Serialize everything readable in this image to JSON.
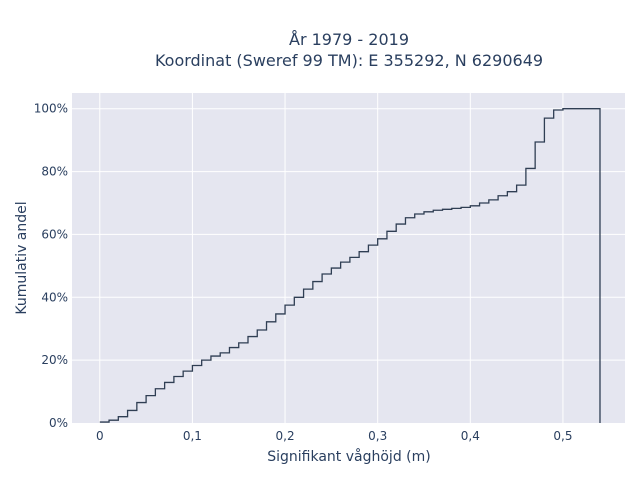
{
  "chart_data": {
    "type": "line",
    "subtype": "cumulative-step",
    "title_line1": "År 1979 - 2019",
    "title_line2": "Koordinat (Sweref 99 TM): E 355292, N 6290649",
    "xlabel": "Signifikant våghöjd (m)",
    "ylabel": "Kumulativ andel",
    "xlim": [
      -0.03,
      0.567
    ],
    "ylim": [
      0,
      105
    ],
    "x_ticks": [
      0,
      0.1,
      0.2,
      0.3,
      0.4,
      0.5
    ],
    "x_tick_labels": [
      "0",
      "0,1",
      "0,2",
      "0,3",
      "0,4",
      "0,5"
    ],
    "y_ticks": [
      0,
      20,
      40,
      60,
      80,
      100
    ],
    "y_tick_labels": [
      "0%",
      "20%",
      "40%",
      "60%",
      "80%",
      "100%"
    ],
    "grid": true,
    "colors": {
      "background": "#e5e6f0",
      "line": "#2f3e53",
      "grid": "#ffffff",
      "text": "#2a3f5f"
    },
    "step_width": 0.01,
    "x": [
      0,
      0.01,
      0.02,
      0.03,
      0.04,
      0.05,
      0.06,
      0.07,
      0.08,
      0.09,
      0.1,
      0.11,
      0.12,
      0.13,
      0.14,
      0.15,
      0.16,
      0.17,
      0.18,
      0.19,
      0.2,
      0.21,
      0.22,
      0.23,
      0.24,
      0.25,
      0.26,
      0.27,
      0.28,
      0.29,
      0.3,
      0.31,
      0.32,
      0.33,
      0.34,
      0.35,
      0.36,
      0.37,
      0.38,
      0.39,
      0.4,
      0.41,
      0.42,
      0.43,
      0.44,
      0.45,
      0.46,
      0.47,
      0.48,
      0.49,
      0.5,
      0.51,
      0.52,
      0.53
    ],
    "y": [
      0.3,
      0.9,
      2.0,
      4.0,
      6.5,
      8.7,
      10.9,
      12.9,
      14.8,
      16.5,
      18.3,
      20.0,
      21.3,
      22.3,
      24.0,
      25.5,
      27.5,
      29.6,
      32.2,
      34.7,
      37.5,
      40.0,
      42.6,
      45.0,
      47.4,
      49.3,
      51.2,
      52.7,
      54.5,
      56.6,
      58.6,
      61.0,
      63.3,
      65.3,
      66.5,
      67.2,
      67.7,
      68.0,
      68.3,
      68.6,
      69.1,
      70.0,
      71.0,
      72.3,
      73.6,
      75.7,
      81.0,
      89.4,
      97.0,
      99.6,
      100,
      100,
      100,
      100
    ],
    "end_x": 0.54
  }
}
